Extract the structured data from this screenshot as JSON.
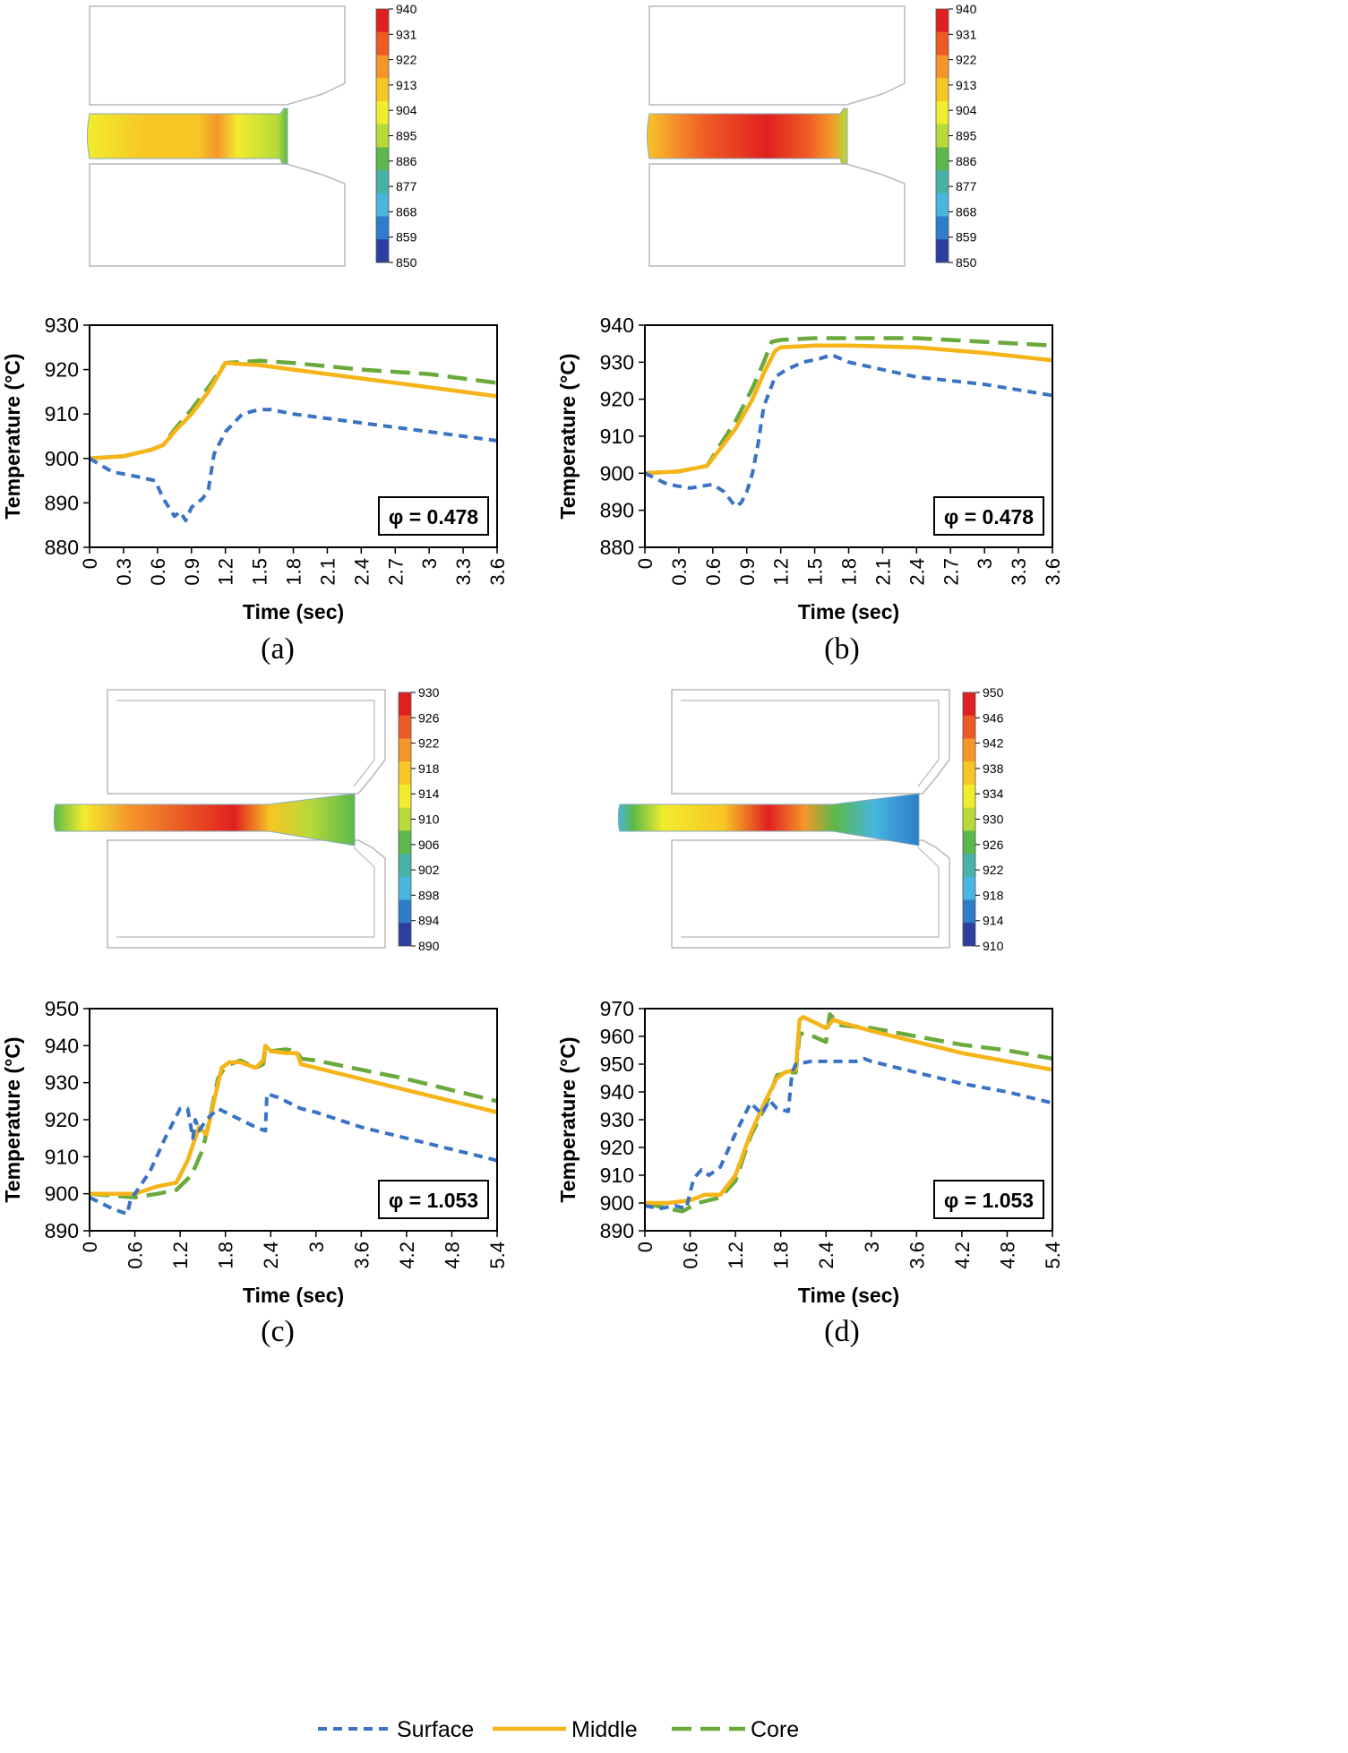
{
  "legend": {
    "items": [
      {
        "label": "Surface",
        "color": "#3a73c4",
        "dash": "10,7",
        "width": 4
      },
      {
        "label": "Middle",
        "color": "#f5b418",
        "dash": "none",
        "width": 4.5
      },
      {
        "label": "Core",
        "color": "#6aaa3c",
        "dash": "22,10",
        "width": 4.5
      }
    ]
  },
  "panels": [
    {
      "label": "(a)",
      "contour": {
        "scale": [
          "940",
          "931",
          "922",
          "913",
          "904",
          "895",
          "886",
          "877",
          "868",
          "859",
          "850"
        ],
        "colors": [
          "#e02020",
          "#ee5a25",
          "#f5962a",
          "#f7c624",
          "#f2ec2e",
          "#b7d93a",
          "#5cb84a",
          "#49b2a6",
          "#48b6de",
          "#2f7cc8",
          "#2c3f9e"
        ]
      },
      "chart_data": {
        "type": "line",
        "title": "",
        "xlabel": "Time (sec)",
        "ylabel": "Temperature (°C)",
        "xlim": [
          0,
          3.6
        ],
        "ylim": [
          880,
          930
        ],
        "xticks": [
          "0",
          "0.3",
          "0.6",
          "0.9",
          "1.2",
          "1.5",
          "1.8",
          "2.1",
          "2.4",
          "2.7",
          "3",
          "3.3",
          "3.6"
        ],
        "yticks": [
          "880",
          "890",
          "900",
          "910",
          "920",
          "930"
        ],
        "annotation": "φ = 0.478",
        "series": [
          {
            "name": "Surface",
            "x": [
              0,
              0.2,
              0.4,
              0.58,
              0.65,
              0.75,
              0.8,
              0.85,
              0.9,
              1.0,
              1.05,
              1.1,
              1.2,
              1.35,
              1.5,
              1.6,
              1.8,
              2.4,
              3.0,
              3.6
            ],
            "y": [
              900,
              897,
              896,
              895,
              891,
              887,
              888,
              886,
              889,
              891,
              893,
              901,
              906,
              910,
              911,
              911,
              910,
              908,
              906,
              904
            ]
          },
          {
            "name": "Middle",
            "x": [
              0,
              0.3,
              0.55,
              0.65,
              0.75,
              0.9,
              1.05,
              1.2,
              1.5,
              1.8,
              2.4,
              3.0,
              3.6
            ],
            "y": [
              900,
              900.5,
              902,
              903,
              906,
              910,
              915,
              921.5,
              921,
              920,
              918,
              916,
              914
            ]
          },
          {
            "name": "Core",
            "x": [
              0,
              0.3,
              0.55,
              0.65,
              0.75,
              0.9,
              1.05,
              1.2,
              1.5,
              1.8,
              2.4,
              3.0,
              3.6
            ],
            "y": [
              900,
              900.5,
              902,
              903,
              906.5,
              911,
              916,
              921.5,
              922,
              921.5,
              920,
              919,
              917
            ]
          }
        ]
      }
    },
    {
      "label": "(b)",
      "contour": {
        "scale": [
          "940",
          "931",
          "922",
          "913",
          "904",
          "895",
          "886",
          "877",
          "868",
          "859",
          "850"
        ],
        "colors": [
          "#e02020",
          "#ee5a25",
          "#f5962a",
          "#f7c624",
          "#f2ec2e",
          "#b7d93a",
          "#5cb84a",
          "#49b2a6",
          "#48b6de",
          "#2f7cc8",
          "#2c3f9e"
        ]
      },
      "chart_data": {
        "type": "line",
        "title": "",
        "xlabel": "Time (sec)",
        "ylabel": "Temperature (°C)",
        "xlim": [
          0,
          3.6
        ],
        "ylim": [
          880,
          940
        ],
        "xticks": [
          "0",
          "0.3",
          "0.6",
          "0.9",
          "1.2",
          "1.5",
          "1.8",
          "2.1",
          "2.4",
          "2.7",
          "3",
          "3.3",
          "3.6"
        ],
        "yticks": [
          "880",
          "890",
          "900",
          "910",
          "920",
          "930",
          "940"
        ],
        "annotation": "φ = 0.478",
        "series": [
          {
            "name": "Surface",
            "x": [
              0,
              0.2,
              0.4,
              0.6,
              0.7,
              0.75,
              0.8,
              0.85,
              0.9,
              0.95,
              1.0,
              1.05,
              1.15,
              1.25,
              1.4,
              1.55,
              1.65,
              1.8,
              2.4,
              3.0,
              3.6
            ],
            "y": [
              900,
              897,
              896,
              897,
              895,
              893,
              891,
              892,
              895,
              900,
              908,
              918,
              926,
              928,
              930,
              931,
              932,
              930,
              926,
              924,
              921
            ]
          },
          {
            "name": "Middle",
            "x": [
              0,
              0.3,
              0.55,
              0.65,
              0.8,
              0.95,
              1.05,
              1.15,
              1.2,
              1.5,
              1.8,
              2.4,
              3.0,
              3.6
            ],
            "y": [
              900,
              900.5,
              902,
              906,
              912,
              920,
              927,
              933,
              934,
              934.5,
              934.5,
              934,
              932.5,
              930.5
            ]
          },
          {
            "name": "Core",
            "x": [
              0,
              0.3,
              0.55,
              0.65,
              0.8,
              0.95,
              1.05,
              1.12,
              1.2,
              1.5,
              1.8,
              2.4,
              3.0,
              3.6
            ],
            "y": [
              900,
              900.5,
              902,
              907,
              914,
              923,
              930,
              935.5,
              936,
              936.5,
              936.5,
              936.5,
              935.5,
              934.5
            ]
          }
        ]
      }
    },
    {
      "label": "(c)",
      "contour": {
        "scale": [
          "930",
          "926",
          "922",
          "918",
          "914",
          "910",
          "906",
          "902",
          "898",
          "894",
          "890"
        ],
        "colors": [
          "#e02020",
          "#ee5a25",
          "#f5962a",
          "#f7c624",
          "#f2ec2e",
          "#b7d93a",
          "#5cb84a",
          "#49b2a6",
          "#48b6de",
          "#2f7cc8",
          "#2c3f9e"
        ]
      },
      "chart_data": {
        "type": "line",
        "title": "",
        "xlabel": "Time (sec)",
        "ylabel": "Temperature (°C)",
        "xlim": [
          0,
          5.4
        ],
        "ylim": [
          890,
          950
        ],
        "xticks": [
          "0",
          "0.6",
          "1.2",
          "1.8",
          "2.4",
          "3",
          "3.6",
          "4.2",
          "4.8",
          "5.4"
        ],
        "yticks": [
          "890",
          "900",
          "910",
          "920",
          "930",
          "940",
          "950"
        ],
        "annotation": "φ = 1.053",
        "series": [
          {
            "name": "Surface",
            "x": [
              0,
              0.3,
              0.5,
              0.55,
              0.6,
              0.8,
              1.0,
              1.2,
              1.3,
              1.37,
              1.4,
              1.45,
              1.55,
              1.7,
              1.8,
              2.0,
              2.2,
              2.33,
              2.35,
              2.5,
              2.8,
              3.0,
              3.6,
              4.2,
              4.8,
              5.4
            ],
            "y": [
              899,
              896,
              894.5,
              899,
              900,
              906,
              915,
              923,
              923,
              915,
              920,
              917,
              920,
              923,
              922,
              920,
              918,
              917,
              927,
              926,
              923,
              922,
              918,
              915,
              912,
              909
            ]
          },
          {
            "name": "Middle",
            "x": [
              0,
              0.3,
              0.6,
              0.9,
              1.15,
              1.3,
              1.45,
              1.55,
              1.65,
              1.75,
              1.85,
              2.0,
              2.2,
              2.3,
              2.33,
              2.4,
              2.6,
              2.75,
              2.8,
              3.0,
              3.6,
              4.2,
              4.8,
              5.4
            ],
            "y": [
              900,
              900,
              900,
              902,
              903,
              909,
              918,
              916,
              925,
              934,
              935.5,
              935.5,
              934,
              936,
              940,
              938.5,
              938,
              938,
              935,
              934,
              931,
              928,
              925,
              922
            ]
          },
          {
            "name": "Core",
            "x": [
              0,
              0.3,
              0.6,
              0.9,
              1.15,
              1.35,
              1.5,
              1.6,
              1.7,
              1.8,
              2.0,
              2.2,
              2.3,
              2.33,
              2.4,
              2.6,
              2.75,
              2.8,
              3.0,
              3.6,
              4.2,
              4.8,
              5.4
            ],
            "y": [
              900,
              899.5,
              899,
              900,
              901,
              905,
              912,
              921,
              931,
              934.5,
              936,
              934,
              935,
              939,
              938.5,
              939,
              938.5,
              936.5,
              936,
              933.5,
              931,
              928,
              925
            ]
          }
        ]
      }
    },
    {
      "label": "(d)",
      "contour": {
        "scale": [
          "950",
          "946",
          "942",
          "938",
          "934",
          "930",
          "926",
          "922",
          "918",
          "914",
          "910"
        ],
        "colors": [
          "#e02020",
          "#ee5a25",
          "#f5962a",
          "#f7c624",
          "#f2ec2e",
          "#b7d93a",
          "#5cb84a",
          "#49b2a6",
          "#48b6de",
          "#2f7cc8",
          "#2c3f9e"
        ]
      },
      "chart_data": {
        "type": "line",
        "title": "",
        "xlabel": "Time (sec)",
        "ylabel": "Temperature (°C)",
        "xlim": [
          0,
          5.4
        ],
        "ylim": [
          890,
          970
        ],
        "xticks": [
          "0",
          "0.6",
          "1.2",
          "1.8",
          "2.4",
          "3",
          "3.6",
          "4.2",
          "4.8",
          "5.4"
        ],
        "yticks": [
          "890",
          "900",
          "910",
          "920",
          "930",
          "940",
          "950",
          "960",
          "970"
        ],
        "annotation": "φ = 1.053",
        "series": [
          {
            "name": "Surface",
            "x": [
              0,
              0.2,
              0.4,
              0.55,
              0.6,
              0.65,
              0.75,
              0.85,
              1.0,
              1.2,
              1.4,
              1.55,
              1.65,
              1.75,
              1.9,
              1.95,
              2.0,
              2.2,
              2.4,
              2.6,
              2.8,
              2.9,
              3.0,
              3.6,
              4.2,
              4.8,
              5.4
            ],
            "y": [
              899,
              898,
              899,
              898,
              904,
              909,
              912,
              910,
              913,
              925,
              936,
              932,
              937,
              934,
              933,
              947,
              950,
              951,
              951,
              951,
              951,
              952,
              951,
              947,
              943,
              940,
              936
            ]
          },
          {
            "name": "Middle",
            "x": [
              0,
              0.3,
              0.6,
              0.8,
              1.0,
              1.2,
              1.4,
              1.6,
              1.75,
              1.85,
              2.0,
              2.05,
              2.1,
              2.4,
              2.5,
              2.6,
              3.0,
              3.6,
              4.2,
              4.8,
              5.4
            ],
            "y": [
              900,
              900,
              901,
              903,
              903,
              910,
              925,
              937,
              945,
              947,
              948,
              966,
              967,
              963,
              966,
              965,
              962,
              958,
              954,
              951,
              948
            ]
          },
          {
            "name": "Core",
            "x": [
              0,
              0.3,
              0.5,
              0.7,
              1.0,
              1.2,
              1.4,
              1.6,
              1.75,
              1.9,
              2.0,
              2.05,
              2.15,
              2.4,
              2.45,
              2.6,
              3.0,
              3.6,
              4.2,
              4.8,
              5.4
            ],
            "y": [
              900,
              898,
              897,
              900,
              902,
              908,
              924,
              935,
              946,
              947,
              947,
              961,
              961,
              958,
              968,
              964,
              963,
              960,
              957,
              955,
              952
            ]
          }
        ]
      }
    }
  ]
}
